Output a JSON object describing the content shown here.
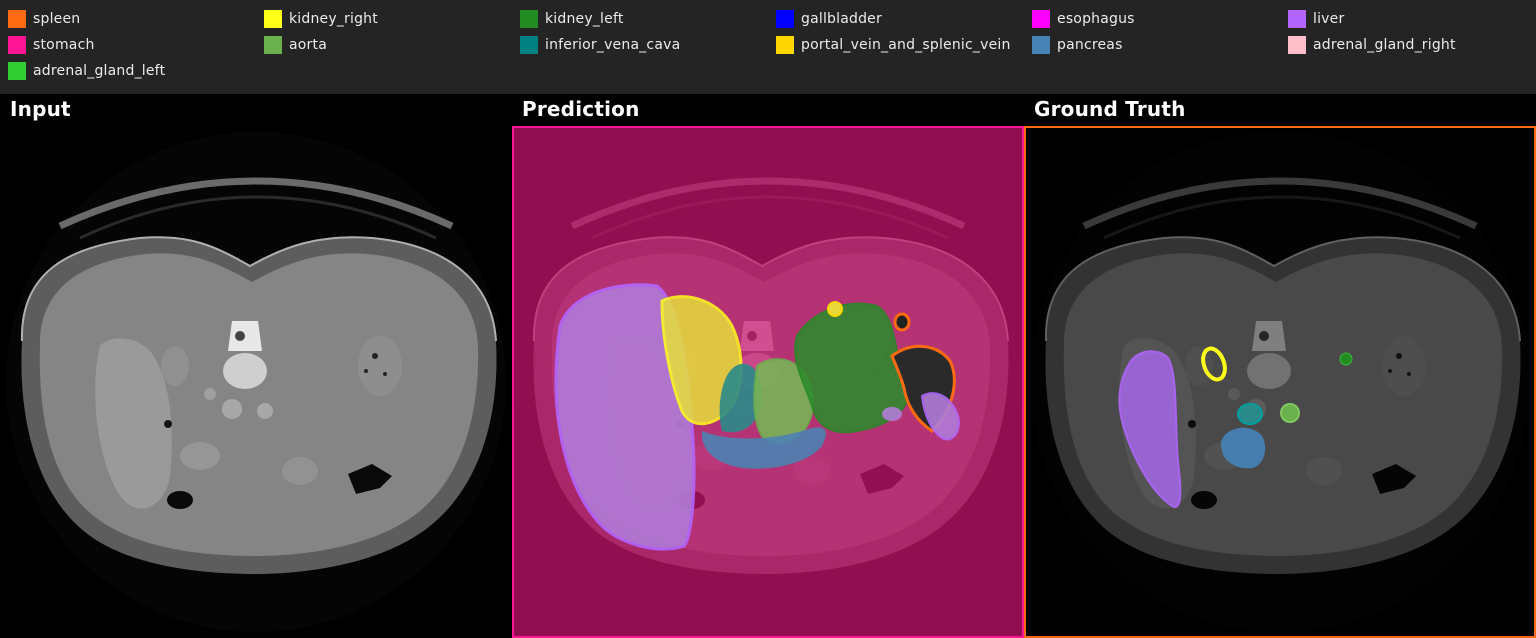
{
  "legend": {
    "items": [
      {
        "label": "spleen",
        "color": "#ff6a13"
      },
      {
        "label": "kidney_right",
        "color": "#ffff1a"
      },
      {
        "label": "kidney_left",
        "color": "#228b22"
      },
      {
        "label": "gallbladder",
        "color": "#0000ff"
      },
      {
        "label": "esophagus",
        "color": "#ff00ff"
      },
      {
        "label": "liver",
        "color": "#b266ff"
      },
      {
        "label": "stomach",
        "color": "#ff1493"
      },
      {
        "label": "aorta",
        "color": "#6ab04c"
      },
      {
        "label": "inferior_vena_cava",
        "color": "#008080"
      },
      {
        "label": "portal_vein_and_splenic_vein",
        "color": "#ffd700"
      },
      {
        "label": "pancreas",
        "color": "#4682b4"
      },
      {
        "label": "adrenal_gland_right",
        "color": "#ffc0cb"
      },
      {
        "label": "adrenal_gland_left",
        "color": "#32cd32"
      }
    ]
  },
  "panels": {
    "input_title": "Input",
    "prediction_title": "Prediction",
    "ground_truth_title": "Ground Truth",
    "prediction_border_color": "#ff1493",
    "ground_truth_border_color": "#ff6a13"
  }
}
